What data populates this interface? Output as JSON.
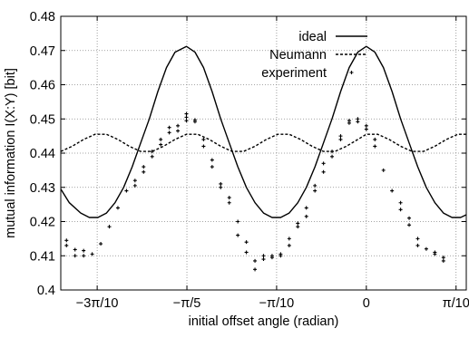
{
  "chart_data": {
    "type": "line",
    "title": "",
    "xlabel": "initial offset angle (radian)",
    "ylabel": "mutual information I(X:Y) [bit]",
    "xlim": [
      -1.07,
      0.35
    ],
    "ylim": [
      0.4,
      0.48
    ],
    "grid": true,
    "legend_position": "top-right",
    "x_ticks": [
      {
        "value": -0.9425,
        "label": "−3π/10"
      },
      {
        "value": -0.6283,
        "label": "−π/5"
      },
      {
        "value": -0.3142,
        "label": "−π/10"
      },
      {
        "value": 0.0,
        "label": "0"
      },
      {
        "value": 0.3142,
        "label": "π/10"
      }
    ],
    "y_ticks": [
      {
        "value": 0.4,
        "label": "0.4"
      },
      {
        "value": 0.41,
        "label": "0.41"
      },
      {
        "value": 0.42,
        "label": "0.42"
      },
      {
        "value": 0.43,
        "label": "0.43"
      },
      {
        "value": 0.44,
        "label": "0.44"
      },
      {
        "value": 0.45,
        "label": "0.45"
      },
      {
        "value": 0.46,
        "label": "0.46"
      },
      {
        "value": 0.47,
        "label": "0.47"
      },
      {
        "value": 0.48,
        "label": "0.48"
      }
    ],
    "series": [
      {
        "name": "ideal",
        "style": "solid",
        "color": "#000000",
        "x": [
          -1.07,
          -1.04,
          -1.0,
          -0.97,
          -0.94,
          -0.91,
          -0.88,
          -0.85,
          -0.82,
          -0.79,
          -0.76,
          -0.73,
          -0.7,
          -0.67,
          -0.63,
          -0.6,
          -0.57,
          -0.54,
          -0.51,
          -0.48,
          -0.45,
          -0.42,
          -0.39,
          -0.36,
          -0.33,
          -0.3,
          -0.27,
          -0.24,
          -0.21,
          -0.18,
          -0.15,
          -0.12,
          -0.09,
          -0.06,
          -0.03,
          0.0,
          0.03,
          0.06,
          0.09,
          0.12,
          0.15,
          0.18,
          0.21,
          0.24,
          0.27,
          0.3,
          0.33,
          0.35
        ],
        "values": [
          0.4295,
          0.4255,
          0.4225,
          0.4212,
          0.4212,
          0.4225,
          0.4255,
          0.43,
          0.436,
          0.443,
          0.45,
          0.458,
          0.465,
          0.4695,
          0.4712,
          0.4695,
          0.465,
          0.458,
          0.45,
          0.443,
          0.436,
          0.43,
          0.4255,
          0.4225,
          0.4212,
          0.4212,
          0.4225,
          0.4255,
          0.43,
          0.436,
          0.443,
          0.45,
          0.458,
          0.465,
          0.4695,
          0.4712,
          0.4695,
          0.465,
          0.458,
          0.45,
          0.443,
          0.436,
          0.43,
          0.4255,
          0.4225,
          0.4212,
          0.4212,
          0.422
        ]
      },
      {
        "name": "Neumann",
        "style": "dashed",
        "color": "#000000",
        "x": [
          -1.07,
          -1.03,
          -0.99,
          -0.95,
          -0.91,
          -0.87,
          -0.83,
          -0.79,
          -0.75,
          -0.71,
          -0.67,
          -0.63,
          -0.59,
          -0.55,
          -0.51,
          -0.47,
          -0.43,
          -0.39,
          -0.35,
          -0.31,
          -0.27,
          -0.23,
          -0.19,
          -0.15,
          -0.11,
          -0.07,
          -0.03,
          0.0,
          0.04,
          0.08,
          0.12,
          0.16,
          0.2,
          0.24,
          0.28,
          0.32,
          0.35
        ],
        "values": [
          0.4405,
          0.442,
          0.444,
          0.4455,
          0.4455,
          0.444,
          0.442,
          0.4405,
          0.4405,
          0.442,
          0.444,
          0.4455,
          0.4455,
          0.444,
          0.442,
          0.4405,
          0.4405,
          0.442,
          0.444,
          0.4455,
          0.4455,
          0.444,
          0.442,
          0.4405,
          0.4405,
          0.442,
          0.444,
          0.4455,
          0.4455,
          0.444,
          0.442,
          0.4405,
          0.4405,
          0.442,
          0.444,
          0.4455,
          0.4455
        ]
      },
      {
        "name": "experiment",
        "style": "points",
        "color": "#000000",
        "x": [
          -1.05,
          -1.05,
          -1.02,
          -1.02,
          -0.99,
          -0.99,
          -0.96,
          -0.93,
          -0.9,
          -0.87,
          -0.84,
          -0.81,
          -0.81,
          -0.78,
          -0.78,
          -0.75,
          -0.75,
          -0.72,
          -0.72,
          -0.69,
          -0.69,
          -0.66,
          -0.66,
          -0.63,
          -0.63,
          -0.63,
          -0.6,
          -0.6,
          -0.57,
          -0.57,
          -0.54,
          -0.54,
          -0.51,
          -0.51,
          -0.48,
          -0.48,
          -0.45,
          -0.45,
          -0.42,
          -0.42,
          -0.39,
          -0.39,
          -0.36,
          -0.36,
          -0.33,
          -0.33,
          -0.3,
          -0.3,
          -0.27,
          -0.27,
          -0.24,
          -0.24,
          -0.21,
          -0.21,
          -0.18,
          -0.18,
          -0.15,
          -0.15,
          -0.12,
          -0.12,
          -0.09,
          -0.09,
          -0.06,
          -0.06,
          -0.03,
          -0.03,
          0.0,
          0.0,
          0.03,
          0.03,
          0.06,
          0.09,
          0.12,
          0.12,
          0.15,
          0.15,
          0.18,
          0.18,
          0.21,
          0.24,
          0.24,
          0.27,
          0.27
        ],
        "values": [
          0.4145,
          0.413,
          0.4118,
          0.41,
          0.4115,
          0.41,
          0.4105,
          0.4135,
          0.4185,
          0.424,
          0.429,
          0.432,
          0.4305,
          0.436,
          0.4345,
          0.4405,
          0.439,
          0.444,
          0.4425,
          0.4475,
          0.446,
          0.448,
          0.4465,
          0.4495,
          0.4515,
          0.4505,
          0.4492,
          0.4497,
          0.444,
          0.442,
          0.438,
          0.436,
          0.431,
          0.43,
          0.427,
          0.4255,
          0.42,
          0.416,
          0.414,
          0.411,
          0.4085,
          0.406,
          0.41,
          0.409,
          0.41,
          0.4095,
          0.4105,
          0.41,
          0.415,
          0.413,
          0.4195,
          0.4185,
          0.424,
          0.4215,
          0.4305,
          0.429,
          0.437,
          0.4345,
          0.4405,
          0.439,
          0.445,
          0.444,
          0.4488,
          0.4495,
          0.45,
          0.4492,
          0.447,
          0.448,
          0.444,
          0.442,
          0.435,
          0.429,
          0.4255,
          0.4235,
          0.421,
          0.419,
          0.415,
          0.413,
          0.412,
          0.4105,
          0.411,
          0.4095,
          0.4085
        ]
      }
    ]
  }
}
